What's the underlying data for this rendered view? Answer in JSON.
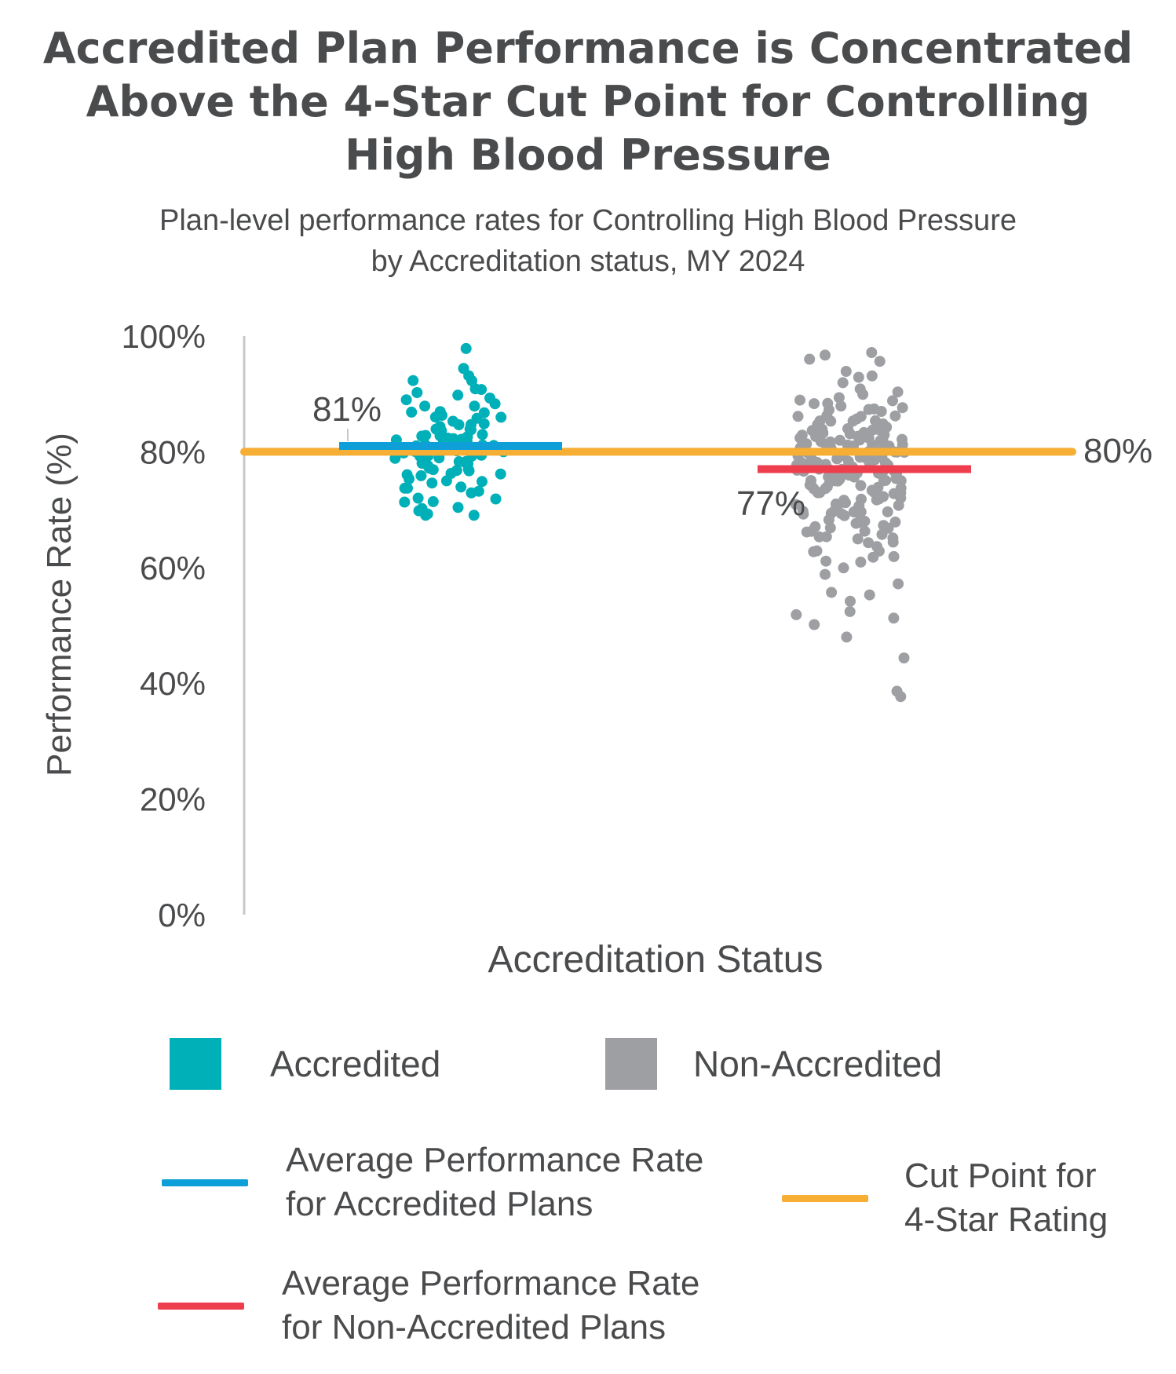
{
  "title_lines": [
    "Accredited Plan Performance is Concentrated",
    "Above the 4-Star Cut Point for Controlling",
    "High Blood Pressure"
  ],
  "subtitle_lines": [
    "Plan-level performance rates for Controlling High Blood Pressure",
    "by Accreditation status, MY 2024"
  ],
  "colors": {
    "accredited": "#00b0b9",
    "non_accredited": "#9d9fa2",
    "avg_accredited": "#0e9fd8",
    "avg_non_accredited": "#ee3e4e",
    "cut_point": "#f6ae35",
    "text": "#4a4b4d",
    "axis": "#c8c8c8"
  },
  "legend": {
    "accredited": "Accredited",
    "non_accredited": "Non-Accredited",
    "avg_accredited_lines": [
      "Average Performance Rate",
      "for Accredited Plans"
    ],
    "avg_non_accredited_lines": [
      "Average Performance Rate",
      "for Non-Accredited Plans"
    ],
    "cut_point_lines": [
      "Cut Point for",
      "4-Star Rating"
    ]
  },
  "chart_data": {
    "type": "scatter",
    "xlabel": "Accreditation Status",
    "ylabel": "Performance Rate (%)",
    "ylim": [
      0,
      100
    ],
    "yticks": [
      "0%",
      "20%",
      "40%",
      "60%",
      "80%",
      "100%"
    ],
    "categories": [
      "Accredited",
      "Non-Accredited"
    ],
    "series": [
      {
        "name": "Accredited",
        "values": [
          98,
          94,
          93,
          92,
          92,
          91,
          91,
          90,
          90,
          89,
          89,
          88,
          88,
          88,
          87,
          87,
          87,
          86,
          86,
          86,
          86,
          85,
          85,
          85,
          85,
          84,
          84,
          84,
          84,
          84,
          83,
          83,
          83,
          83,
          83,
          82,
          82,
          82,
          82,
          82,
          82,
          81,
          81,
          81,
          81,
          81,
          81,
          80,
          80,
          80,
          80,
          80,
          80,
          80,
          79,
          79,
          79,
          79,
          79,
          79,
          78,
          78,
          78,
          78,
          78,
          78,
          77,
          77,
          77,
          77,
          77,
          76,
          76,
          76,
          76,
          75,
          75,
          75,
          75,
          74,
          74,
          74,
          73,
          73,
          72,
          72,
          71,
          71,
          70,
          70,
          70,
          69,
          69,
          69
        ]
      },
      {
        "name": "Non-Accredited",
        "values": [
          97,
          97,
          96,
          96,
          94,
          93,
          93,
          92,
          91,
          90,
          90,
          89,
          89,
          89,
          88,
          88,
          88,
          88,
          87,
          87,
          87,
          87,
          86,
          86,
          86,
          86,
          86,
          85,
          85,
          85,
          85,
          85,
          85,
          84,
          84,
          84,
          84,
          84,
          84,
          84,
          83,
          83,
          83,
          83,
          83,
          83,
          83,
          83,
          82,
          82,
          82,
          82,
          82,
          82,
          82,
          82,
          82,
          81,
          81,
          81,
          81,
          81,
          81,
          81,
          81,
          81,
          81,
          80,
          80,
          80,
          80,
          80,
          80,
          80,
          80,
          80,
          80,
          80,
          79,
          79,
          79,
          79,
          79,
          79,
          79,
          79,
          79,
          79,
          78,
          78,
          78,
          78,
          78,
          78,
          78,
          78,
          78,
          78,
          77,
          77,
          77,
          77,
          77,
          77,
          77,
          77,
          77,
          77,
          76,
          76,
          76,
          76,
          76,
          76,
          76,
          76,
          76,
          75,
          75,
          75,
          75,
          75,
          75,
          75,
          75,
          75,
          74,
          74,
          74,
          74,
          74,
          74,
          74,
          74,
          73,
          73,
          73,
          73,
          73,
          73,
          73,
          72,
          72,
          72,
          72,
          72,
          72,
          71,
          71,
          71,
          71,
          71,
          71,
          70,
          70,
          70,
          70,
          70,
          70,
          69,
          69,
          69,
          69,
          69,
          68,
          68,
          68,
          68,
          68,
          67,
          67,
          67,
          67,
          66,
          66,
          66,
          66,
          65,
          65,
          65,
          65,
          64,
          64,
          64,
          63,
          63,
          63,
          62,
          62,
          61,
          61,
          60,
          59,
          57,
          56,
          55,
          54,
          52,
          52,
          51,
          50,
          48,
          44,
          39,
          38
        ]
      }
    ],
    "reference_lines": [
      {
        "name": "Average Performance Rate for Accredited Plans",
        "value": 81,
        "label": "81%",
        "category": "Accredited"
      },
      {
        "name": "Average Performance Rate for Non-Accredited Plans",
        "value": 77,
        "label": "77%",
        "category": "Non-Accredited"
      },
      {
        "name": "Cut Point for 4-Star Rating",
        "value": 80,
        "label": "80%",
        "category": "all"
      }
    ]
  }
}
